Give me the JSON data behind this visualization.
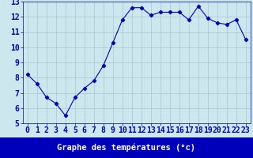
{
  "x": [
    0,
    1,
    2,
    3,
    4,
    5,
    6,
    7,
    8,
    9,
    10,
    11,
    12,
    13,
    14,
    15,
    16,
    17,
    18,
    19,
    20,
    21,
    22,
    23
  ],
  "y": [
    8.2,
    7.6,
    6.7,
    6.3,
    5.5,
    6.7,
    7.3,
    7.8,
    8.8,
    10.3,
    11.8,
    12.6,
    12.6,
    12.1,
    12.3,
    12.3,
    12.3,
    11.8,
    12.7,
    11.9,
    11.6,
    11.5,
    11.8,
    10.5
  ],
  "line_color": "#0000bb",
  "marker": "D",
  "marker_size": 2.2,
  "bg_color": "#cce8ee",
  "grid_color": "#aac8ce",
  "xlabel": "Graphe des températures (°c)",
  "xlabel_color": "#0000bb",
  "xlabel_bg": "#0000bb",
  "xlabel_text_color": "#cce8ee",
  "xlabel_fontsize": 7.5,
  "tick_color": "#0000bb",
  "tick_fontsize": 7,
  "ylim": [
    5,
    13
  ],
  "xlim_min": -0.5,
  "xlim_max": 23.5,
  "yticks": [
    5,
    6,
    7,
    8,
    9,
    10,
    11,
    12,
    13
  ],
  "xticks": [
    0,
    1,
    2,
    3,
    4,
    5,
    6,
    7,
    8,
    9,
    10,
    11,
    12,
    13,
    14,
    15,
    16,
    17,
    18,
    19,
    20,
    21,
    22,
    23
  ],
  "bottom_bar_color": "#0000bb",
  "bottom_bar_height": 0.13
}
